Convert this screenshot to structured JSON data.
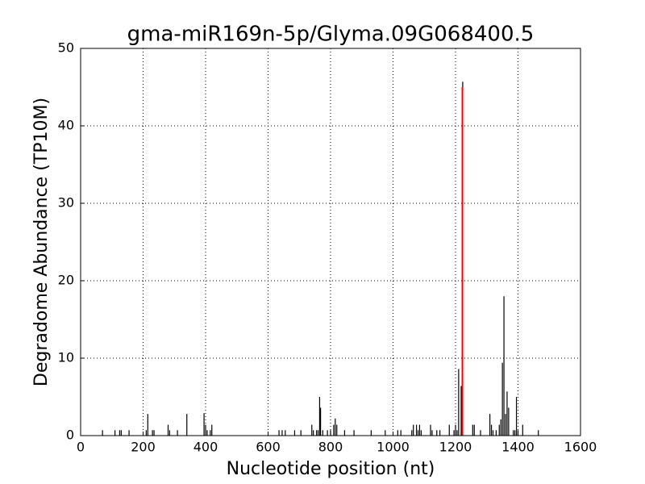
{
  "chart_data": {
    "type": "stem",
    "title": "gma-miR169n-5p/Glyma.09G068400.5",
    "x_label": "Nucleotide position (nt)",
    "y_label": "Degradome Abundance (TP10M)",
    "xlim": [
      0,
      1600
    ],
    "xticks": [
      0,
      200,
      400,
      600,
      800,
      1000,
      1200,
      1400,
      1600
    ],
    "ylim": [
      0,
      50
    ],
    "yticks": [
      0,
      10,
      20,
      30,
      40,
      50
    ],
    "grid": true,
    "series": [
      {
        "color": "#000000",
        "x": [
          70,
          110,
          125,
          130,
          155,
          210,
          215,
          230,
          235,
          280,
          285,
          310,
          340,
          395,
          400,
          405,
          415,
          420,
          635,
          645,
          655,
          685,
          705,
          740,
          745,
          755,
          760,
          765,
          768,
          775,
          790,
          800,
          810,
          815,
          820,
          845,
          875,
          930,
          975,
          1015,
          1025,
          1060,
          1065,
          1075,
          1080,
          1085,
          1090,
          1120,
          1125,
          1140,
          1150,
          1180,
          1195,
          1200,
          1205,
          1210,
          1218,
          1223,
          1255,
          1260,
          1280,
          1310,
          1315,
          1320,
          1330,
          1340,
          1345,
          1350,
          1355,
          1360,
          1365,
          1370,
          1385,
          1390,
          1395,
          1400,
          1415,
          1465
        ],
        "values": [
          0.7,
          0.7,
          0.7,
          0.7,
          0.7,
          0.7,
          2.8,
          0.7,
          0.7,
          1.4,
          0.7,
          0.7,
          2.8,
          2.9,
          1.4,
          0.7,
          0.7,
          1.4,
          0.7,
          0.7,
          0.7,
          0.7,
          0.7,
          1.4,
          0.7,
          0.7,
          0.7,
          5.0,
          3.6,
          0.7,
          0.7,
          0.7,
          1.4,
          2.2,
          1.4,
          0.7,
          0.7,
          0.7,
          0.7,
          0.7,
          0.7,
          0.7,
          1.4,
          1.4,
          0.7,
          1.4,
          0.7,
          1.4,
          0.7,
          0.7,
          0.7,
          1.4,
          0.7,
          1.4,
          0.7,
          8.6,
          6.4,
          45.7,
          1.4,
          1.4,
          0.7,
          2.8,
          1.4,
          0.7,
          0.7,
          1.4,
          2.1,
          9.4,
          18.0,
          2.8,
          5.7,
          3.6,
          0.7,
          0.7,
          5.0,
          0.7,
          1.4,
          0.7
        ]
      },
      {
        "color": "#ff0000",
        "x": [
          1222
        ],
        "values": [
          45
        ]
      }
    ]
  }
}
